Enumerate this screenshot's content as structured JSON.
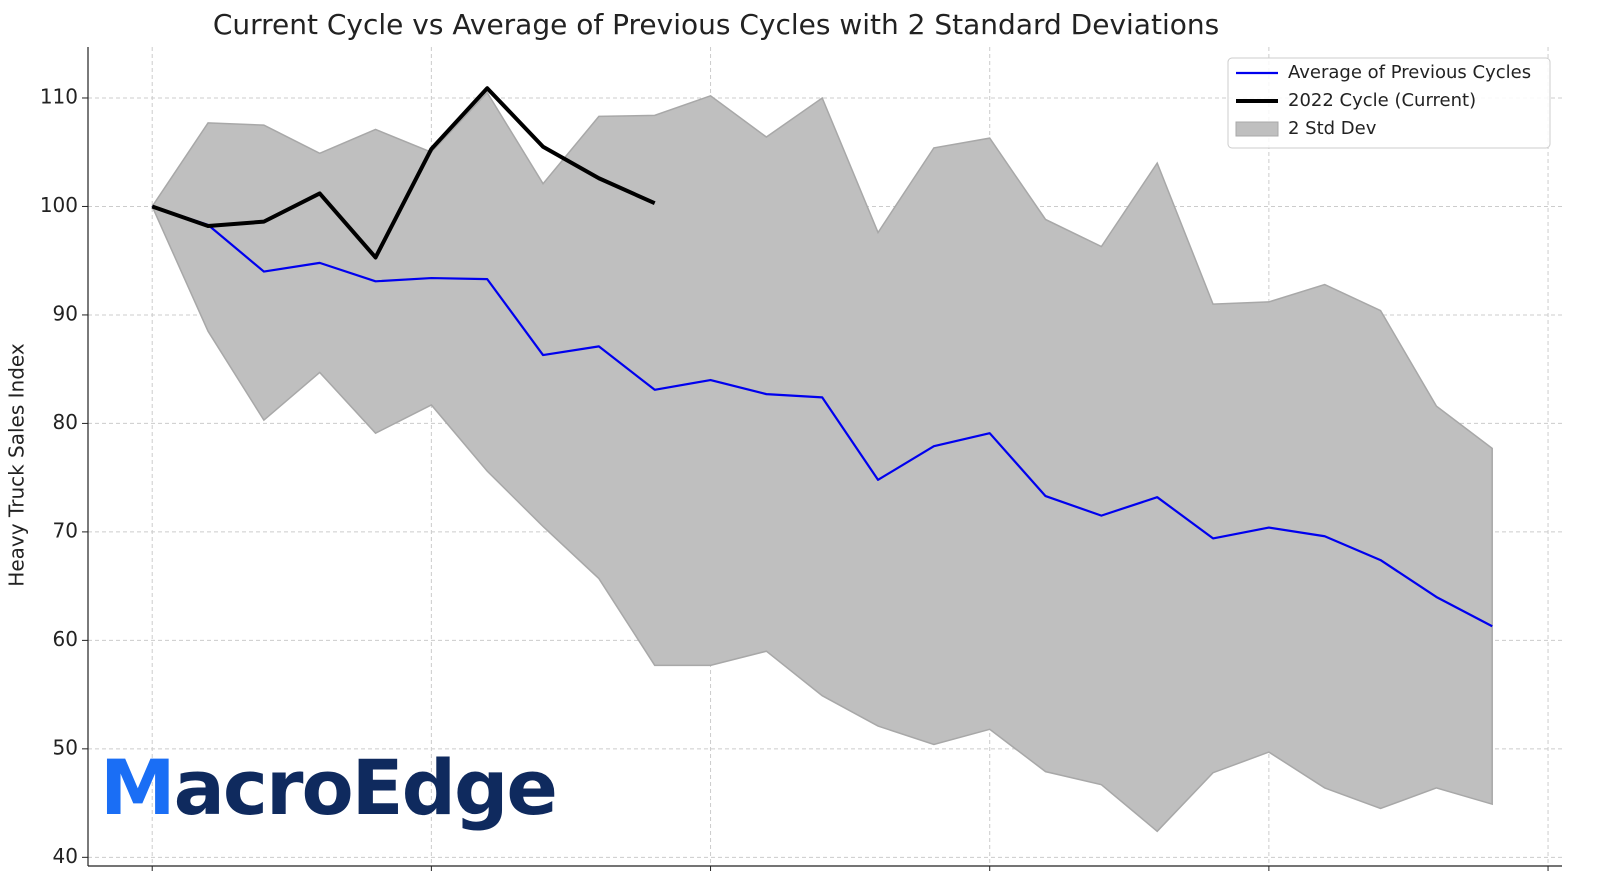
{
  "chart_data": {
    "type": "line",
    "title": "Current Cycle vs Average of Previous Cycles with 2 Standard Deviations",
    "y_label": "Heavy Truck Sales Index",
    "watermark": [
      "M",
      "acroEdge"
    ],
    "x": [
      0,
      1,
      2,
      3,
      4,
      5,
      6,
      7,
      8,
      9,
      10,
      11,
      12,
      13,
      14,
      15,
      16,
      17,
      18,
      19,
      20,
      21,
      22,
      23,
      24
    ],
    "xlim": [
      -1.15,
      25.25
    ],
    "xticks": [
      0,
      5,
      10,
      15,
      20,
      25
    ],
    "ylim": [
      39.2,
      114.7
    ],
    "yticks": [
      40,
      50,
      60,
      70,
      80,
      90,
      100,
      110
    ],
    "grid": true,
    "legend": "upper right",
    "band": {
      "name": "2 Std Dev",
      "color": "#bfbfbf",
      "upper": [
        100,
        107.7,
        107.5,
        104.9,
        107.1,
        105.0,
        110.5,
        102.1,
        108.3,
        108.4,
        110.2,
        106.4,
        110.0,
        97.6,
        105.4,
        106.3,
        98.8,
        96.3,
        104.0,
        91.0,
        91.2,
        92.8,
        90.4,
        81.6,
        77.7
      ],
      "lower": [
        100,
        88.5,
        80.3,
        84.7,
        79.1,
        81.7,
        75.6,
        70.5,
        65.7,
        57.7,
        57.7,
        59.0,
        54.9,
        52.1,
        50.4,
        51.8,
        47.9,
        46.7,
        42.4,
        47.8,
        49.7,
        46.4,
        44.5,
        46.4,
        44.9
      ]
    },
    "series": [
      {
        "name": "Average of Previous Cycles",
        "color": "#0000ee",
        "values": [
          100,
          98.3,
          94.0,
          94.8,
          93.1,
          93.4,
          93.3,
          86.3,
          87.1,
          83.1,
          84.0,
          82.7,
          82.4,
          74.8,
          77.9,
          79.1,
          73.3,
          71.5,
          73.2,
          69.4,
          70.4,
          69.6,
          67.4,
          64.0,
          61.3
        ]
      },
      {
        "name": "2022 Cycle (Current)",
        "color": "#000000",
        "values": [
          100,
          98.2,
          98.6,
          101.2,
          95.3,
          105.3,
          110.9,
          105.5,
          102.6,
          100.3,
          null,
          null,
          null,
          null,
          null,
          null,
          null,
          null,
          null,
          null,
          null,
          null,
          null,
          null,
          null
        ]
      }
    ]
  }
}
